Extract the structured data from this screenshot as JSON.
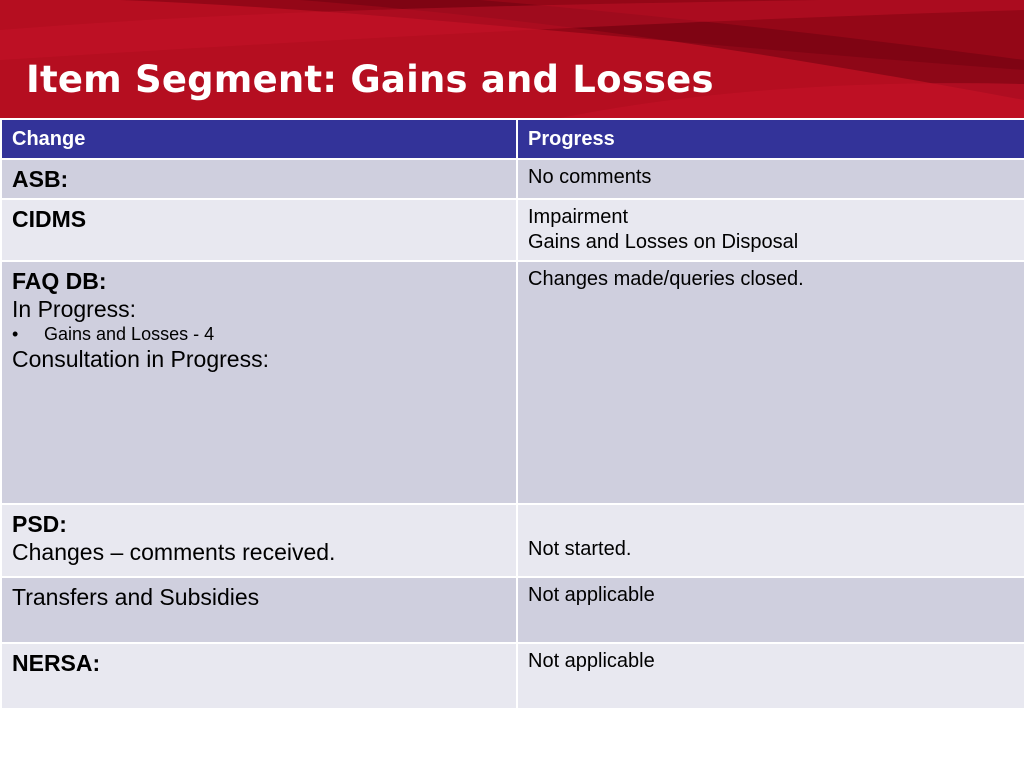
{
  "header": {
    "title": "Item Segment:  Gains and Losses"
  },
  "table": {
    "columns": [
      "Change",
      "Progress"
    ],
    "rows": [
      {
        "change_title": "ASB:",
        "progress": [
          "No comments"
        ]
      },
      {
        "change_title": "CIDMS",
        "progress": [
          "Impairment",
          "Gains and Losses on Disposal"
        ]
      },
      {
        "change_title": "FAQ DB:",
        "change_lines": [
          "In Progress:"
        ],
        "bullet": "Gains and Losses - 4",
        "change_after": "Consultation in Progress:",
        "progress": [
          "Changes made/queries closed."
        ]
      },
      {
        "change_title": "PSD:",
        "change_lines": [
          "Changes – comments received."
        ],
        "progress": [
          "Not started."
        ]
      },
      {
        "change_text": "Transfers and Subsidies",
        "progress": [
          "Not applicable"
        ]
      },
      {
        "change_title": "NERSA:",
        "progress": [
          "Not applicable"
        ]
      }
    ]
  },
  "colors": {
    "header_red": "#b00f1f",
    "table_header_blue": "#333399",
    "row_dark": "#cfcfde",
    "row_light": "#e8e8f0"
  }
}
